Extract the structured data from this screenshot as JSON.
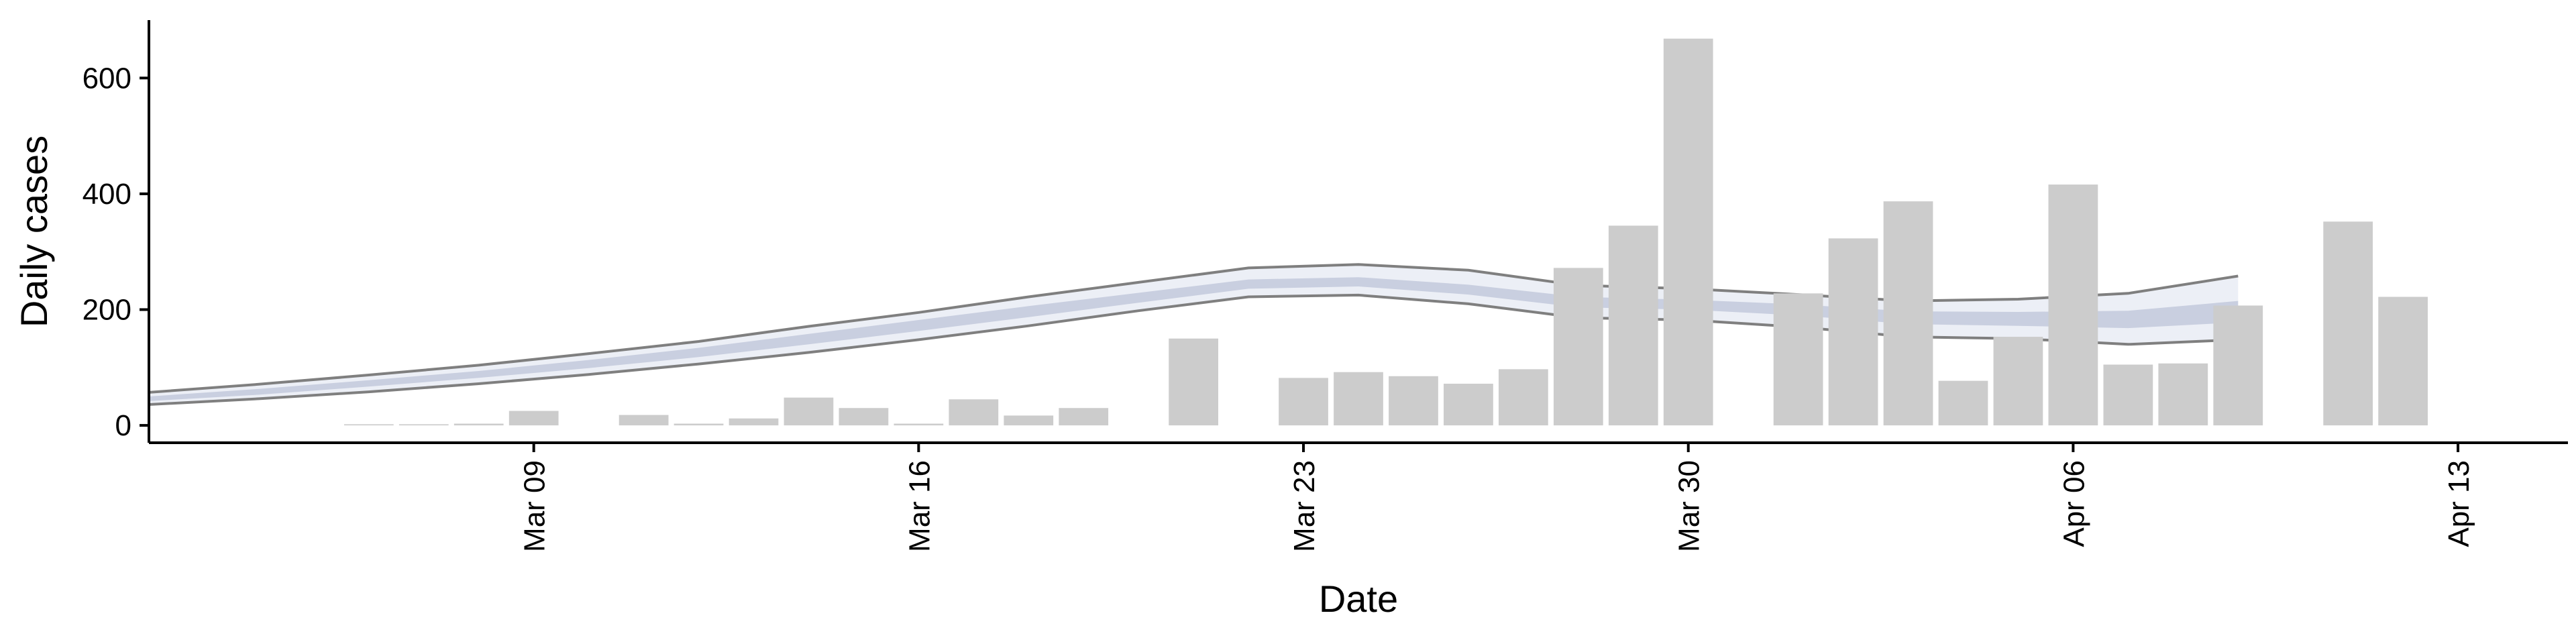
{
  "chart_data": {
    "type": "bar",
    "xlabel": "Date",
    "ylabel": "Daily cases",
    "ylim": [
      -30,
      700
    ],
    "yticks": [
      0,
      200,
      400,
      600
    ],
    "x_range": [
      "2020-03-02",
      "2020-04-15"
    ],
    "xticks": [
      {
        "date": "2020-03-09",
        "label": "Mar 09"
      },
      {
        "date": "2020-03-16",
        "label": "Mar 16"
      },
      {
        "date": "2020-03-23",
        "label": "Mar 23"
      },
      {
        "date": "2020-03-30",
        "label": "Mar 30"
      },
      {
        "date": "2020-04-06",
        "label": "Apr 06"
      },
      {
        "date": "2020-04-13",
        "label": "Apr 13"
      }
    ],
    "bars": [
      {
        "date": "2020-03-06",
        "value": 2
      },
      {
        "date": "2020-03-07",
        "value": 2
      },
      {
        "date": "2020-03-08",
        "value": 3
      },
      {
        "date": "2020-03-09",
        "value": 25
      },
      {
        "date": "2020-03-11",
        "value": 18
      },
      {
        "date": "2020-03-12",
        "value": 3
      },
      {
        "date": "2020-03-13",
        "value": 12
      },
      {
        "date": "2020-03-14",
        "value": 48
      },
      {
        "date": "2020-03-15",
        "value": 30
      },
      {
        "date": "2020-03-16",
        "value": 3
      },
      {
        "date": "2020-03-17",
        "value": 45
      },
      {
        "date": "2020-03-18",
        "value": 17
      },
      {
        "date": "2020-03-19",
        "value": 30
      },
      {
        "date": "2020-03-21",
        "value": 150
      },
      {
        "date": "2020-03-23",
        "value": 82
      },
      {
        "date": "2020-03-24",
        "value": 92
      },
      {
        "date": "2020-03-25",
        "value": 85
      },
      {
        "date": "2020-03-26",
        "value": 72
      },
      {
        "date": "2020-03-27",
        "value": 97
      },
      {
        "date": "2020-03-28",
        "value": 272
      },
      {
        "date": "2020-03-29",
        "value": 345
      },
      {
        "date": "2020-03-30",
        "value": 668
      },
      {
        "date": "2020-04-01",
        "value": 228
      },
      {
        "date": "2020-04-02",
        "value": 323
      },
      {
        "date": "2020-04-03",
        "value": 387
      },
      {
        "date": "2020-04-04",
        "value": 77
      },
      {
        "date": "2020-04-05",
        "value": 153
      },
      {
        "date": "2020-04-06",
        "value": 416
      },
      {
        "date": "2020-04-07",
        "value": 105
      },
      {
        "date": "2020-04-08",
        "value": 107
      },
      {
        "date": "2020-04-09",
        "value": 207
      },
      {
        "date": "2020-04-11",
        "value": 352
      },
      {
        "date": "2020-04-12",
        "value": 222
      }
    ],
    "estimate": [
      {
        "date": "2020-03-02",
        "lower": 36,
        "mid_lower": 42,
        "median": 46,
        "mid_upper": 50,
        "upper": 57
      },
      {
        "date": "2020-03-04",
        "lower": 46,
        "mid_lower": 53,
        "median": 58,
        "mid_upper": 63,
        "upper": 71
      },
      {
        "date": "2020-03-06",
        "lower": 58,
        "mid_lower": 67,
        "median": 72,
        "mid_upper": 78,
        "upper": 87
      },
      {
        "date": "2020-03-08",
        "lower": 72,
        "mid_lower": 82,
        "median": 88,
        "mid_upper": 94,
        "upper": 104
      },
      {
        "date": "2020-03-10",
        "lower": 88,
        "mid_lower": 99,
        "median": 106,
        "mid_upper": 113,
        "upper": 124
      },
      {
        "date": "2020-03-12",
        "lower": 106,
        "mid_lower": 118,
        "median": 126,
        "mid_upper": 134,
        "upper": 145
      },
      {
        "date": "2020-03-14",
        "lower": 126,
        "mid_lower": 140,
        "median": 149,
        "mid_upper": 158,
        "upper": 171
      },
      {
        "date": "2020-03-16",
        "lower": 148,
        "mid_lower": 163,
        "median": 172,
        "mid_upper": 182,
        "upper": 195
      },
      {
        "date": "2020-03-18",
        "lower": 172,
        "mid_lower": 187,
        "median": 196,
        "mid_upper": 206,
        "upper": 222
      },
      {
        "date": "2020-03-20",
        "lower": 198,
        "mid_lower": 212,
        "median": 220,
        "mid_upper": 229,
        "upper": 247
      },
      {
        "date": "2020-03-22",
        "lower": 222,
        "mid_lower": 236,
        "median": 244,
        "mid_upper": 252,
        "upper": 272
      },
      {
        "date": "2020-03-24",
        "lower": 225,
        "mid_lower": 240,
        "median": 248,
        "mid_upper": 256,
        "upper": 278
      },
      {
        "date": "2020-03-26",
        "lower": 210,
        "mid_lower": 226,
        "median": 234,
        "mid_upper": 243,
        "upper": 268
      },
      {
        "date": "2020-03-28",
        "lower": 186,
        "mid_lower": 204,
        "median": 213,
        "mid_upper": 222,
        "upper": 242
      },
      {
        "date": "2020-03-30",
        "lower": 182,
        "mid_lower": 200,
        "median": 208,
        "mid_upper": 217,
        "upper": 236
      },
      {
        "date": "2020-04-01",
        "lower": 170,
        "mid_lower": 190,
        "median": 199,
        "mid_upper": 209,
        "upper": 226
      },
      {
        "date": "2020-04-03",
        "lower": 153,
        "mid_lower": 175,
        "median": 186,
        "mid_upper": 197,
        "upper": 215
      },
      {
        "date": "2020-04-05",
        "lower": 150,
        "mid_lower": 172,
        "median": 184,
        "mid_upper": 196,
        "upper": 218
      },
      {
        "date": "2020-04-07",
        "lower": 140,
        "mid_lower": 168,
        "median": 182,
        "mid_upper": 198,
        "upper": 228
      },
      {
        "date": "2020-04-09",
        "lower": 148,
        "mid_lower": 178,
        "median": 196,
        "mid_upper": 215,
        "upper": 258
      }
    ],
    "colors": {
      "bars": "#cccccc",
      "band_outer": "#e6e9f3",
      "band_inner": "#c3c9dc",
      "band_edge": "#7f7f7f",
      "axis": "#000000"
    }
  }
}
